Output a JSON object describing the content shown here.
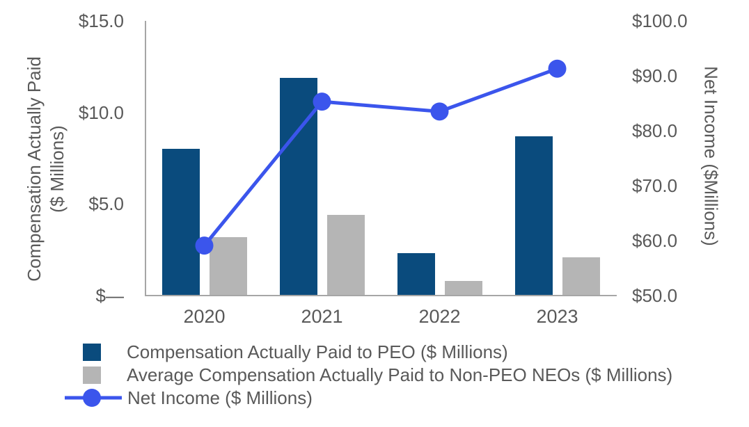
{
  "colors": {
    "background": "#ffffff",
    "axis_line": "#a6a6a6",
    "text": "#595959",
    "peo_bar": "#0a4b7d",
    "non_peo_bar": "#b5b5b5",
    "net_income_line": "#3b55ec"
  },
  "chart_data": {
    "type": "combo-bar-line",
    "title": "",
    "categories": [
      "2020",
      "2021",
      "2022",
      "2023"
    ],
    "series": [
      {
        "name": "Compensation Actually Paid to PEO ($ Millions)",
        "type": "bar",
        "axis": "left",
        "color": "#0a4b7d",
        "values": [
          8.0,
          11.9,
          2.3,
          8.7
        ]
      },
      {
        "name": "Average Compensation Actually Paid to Non-PEO NEOs ($ Millions)",
        "type": "bar",
        "axis": "left",
        "color": "#b5b5b5",
        "values": [
          3.2,
          4.4,
          0.8,
          2.1
        ]
      },
      {
        "name": "Net Income ($ Millions)",
        "type": "line",
        "axis": "right",
        "color": "#3b55ec",
        "values": [
          59.1,
          85.3,
          83.5,
          91.3
        ]
      }
    ],
    "left_axis": {
      "title_line1": "Compensation Actually Paid",
      "title_line2": "($ Millions)",
      "min": 0,
      "max": 15,
      "ticks": [
        "$15.0",
        "$10.0",
        "$5.0",
        "$—"
      ],
      "tick_values": [
        15,
        10,
        5,
        0
      ]
    },
    "right_axis": {
      "title": "Net Income ($Millions)",
      "min": 50,
      "max": 100,
      "ticks": [
        "$100.0",
        "$90.0",
        "$80.0",
        "$70.0",
        "$60.0",
        "$50.0"
      ],
      "tick_values": [
        100,
        90,
        80,
        70,
        60,
        50
      ]
    },
    "grid": false,
    "legend_position": "bottom-left"
  }
}
